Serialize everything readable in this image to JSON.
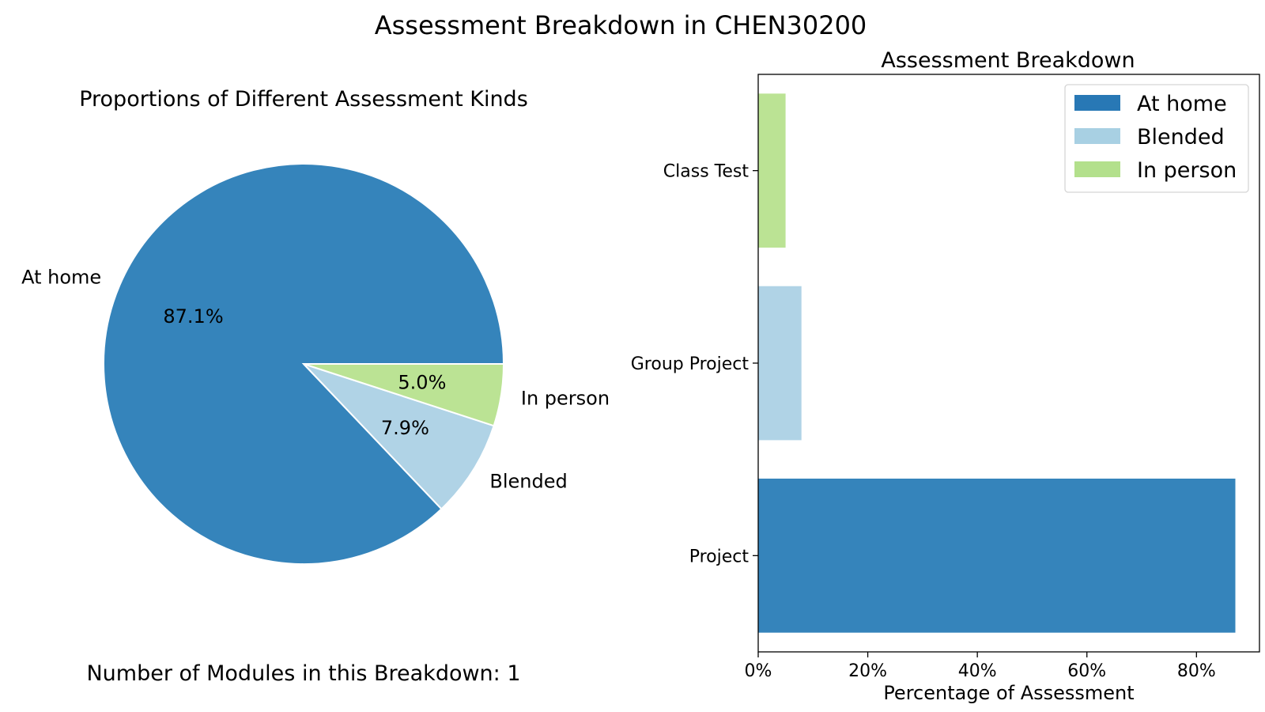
{
  "figure": {
    "title": "Assessment Breakdown in CHEN30200",
    "footnote": "Number of Modules in this Breakdown: 1"
  },
  "chart_data": [
    {
      "type": "pie",
      "title": "Proportions of Different Assessment Kinds",
      "labels": [
        "At home",
        "Blended",
        "In person"
      ],
      "values": [
        87.1,
        7.9,
        5.0
      ],
      "value_labels": [
        "87.1%",
        "7.9%",
        "5.0%"
      ],
      "colors": [
        "#3584bb",
        "#b0d3e6",
        "#bbe394"
      ]
    },
    {
      "type": "bar",
      "orientation": "horizontal",
      "title": "Assessment Breakdown",
      "categories": [
        "Project",
        "Group Project",
        "Class Test"
      ],
      "series": [
        {
          "name": "At home",
          "values": [
            87.1,
            0,
            0
          ]
        },
        {
          "name": "Blended",
          "values": [
            0,
            7.9,
            0
          ]
        },
        {
          "name": "In person",
          "values": [
            0,
            0,
            5.0
          ]
        }
      ],
      "colors": [
        "#3584bb",
        "#b0d3e6",
        "#bbe394"
      ],
      "legend_colors": [
        "#2878b5",
        "#a8d0e3",
        "#b3e08c"
      ],
      "xlabel": "Percentage of Assessment",
      "xlim": [
        0,
        91.5
      ],
      "xticks": [
        0,
        20,
        40,
        60,
        80
      ],
      "xtick_labels": [
        "0%",
        "20%",
        "40%",
        "60%",
        "80%"
      ],
      "legend_position": "top-right",
      "grid": false
    }
  ]
}
